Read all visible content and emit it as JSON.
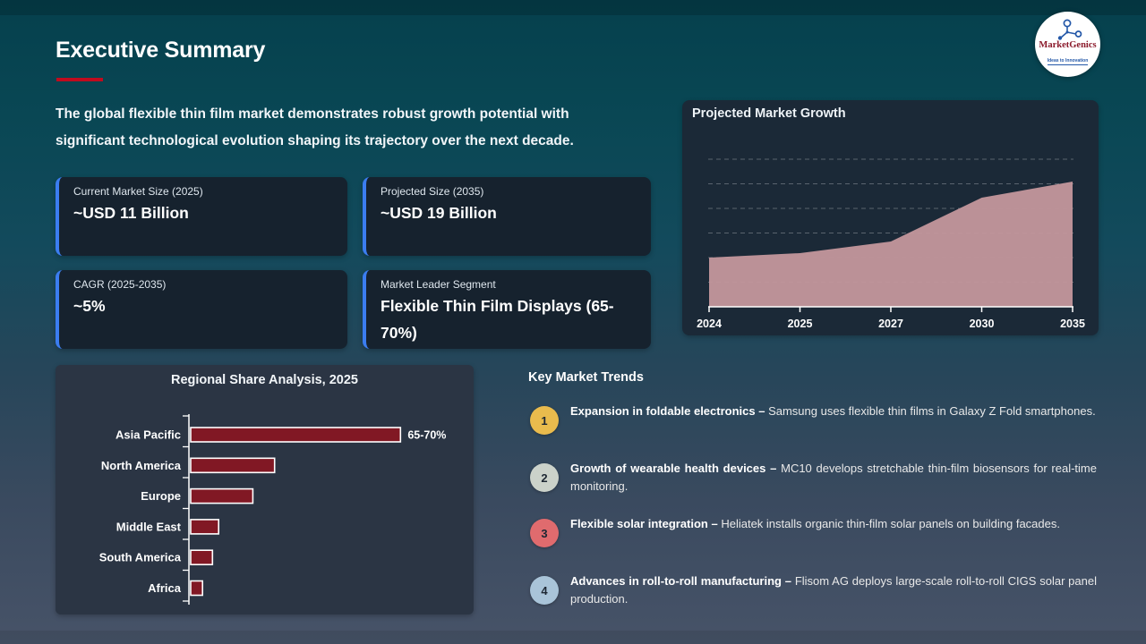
{
  "slide": {
    "title": "Executive Summary",
    "intro": "The global flexible thin film market demonstrates robust growth potential with\nsignificant technological evolution shaping its trajectory over the next decade."
  },
  "logo": {
    "brand": "MarketGenics",
    "tagline": "Ideas to Innovation"
  },
  "stat_cards": [
    {
      "label": "Current Market Size (2025)",
      "value": "~USD 11 Billion"
    },
    {
      "label": "Projected Size (2035)",
      "value": "~USD 19 Billion"
    },
    {
      "label": "CAGR (2025-2035)",
      "value": "~5%"
    },
    {
      "label": "Market Leader Segment",
      "value": "Flexible Thin Film Displays (65-70%)"
    }
  ],
  "chart_data": [
    {
      "type": "area",
      "title": "Projected Market Growth",
      "x": [
        "2024",
        "2025",
        "2027",
        "2030",
        "2035"
      ],
      "values": [
        10.5,
        11,
        12.3,
        17.2,
        19
      ],
      "unit": "USD Billion (estimated, axis unlabeled)",
      "ylim": [
        5,
        21.5
      ],
      "grid": "dashed horizontal",
      "legend": "none"
    },
    {
      "type": "bar",
      "orientation": "horizontal",
      "title": "Regional Share Analysis, 2025",
      "categories": [
        "Asia Pacific",
        "North America",
        "Europe",
        "Middle East",
        "South America",
        "Africa"
      ],
      "values": [
        67.5,
        27,
        20,
        9,
        7,
        3.8
      ],
      "data_labels": [
        "65-70%",
        "",
        "",
        "",
        "",
        ""
      ],
      "unit": "% market share (estimated from bar lengths)",
      "xlim": [
        0,
        70
      ],
      "grid": "off",
      "legend": "none"
    }
  ],
  "trends": {
    "heading": "Key Market Trends",
    "items": [
      {
        "num": "1",
        "color": "#e9bb4d",
        "lead": "Expansion in foldable electronics –",
        "text": "Samsung uses flexible thin films in Galaxy Z Fold smartphones."
      },
      {
        "num": "2",
        "color": "#cbd2ca",
        "lead": "Growth of wearable health devices –",
        "text": "MC10 develops stretchable thin-film biosensors for real-time monitoring."
      },
      {
        "num": "3",
        "color": "#e06b6e",
        "lead": "Flexible solar integration –",
        "text": "Heliatek installs organic thin-film solar panels on building facades."
      },
      {
        "num": "4",
        "color": "#a9c4d9",
        "lead": "Advances in roll-to-roll manufacturing –",
        "text": "Flisom AG deploys large-scale roll-to-roll CIGS solar panel production."
      }
    ]
  },
  "colors": {
    "accent_blue": "#3b7df0",
    "underline_red": "#c00b1e",
    "card_bg": "#16222e",
    "growth_bg": "#1b2937",
    "regional_bg": "#2b3544",
    "area_fill": "#c4979c",
    "bar_fill": "#811824",
    "logo_red": "#8b1a2b",
    "logo_blue": "#2458a8"
  }
}
